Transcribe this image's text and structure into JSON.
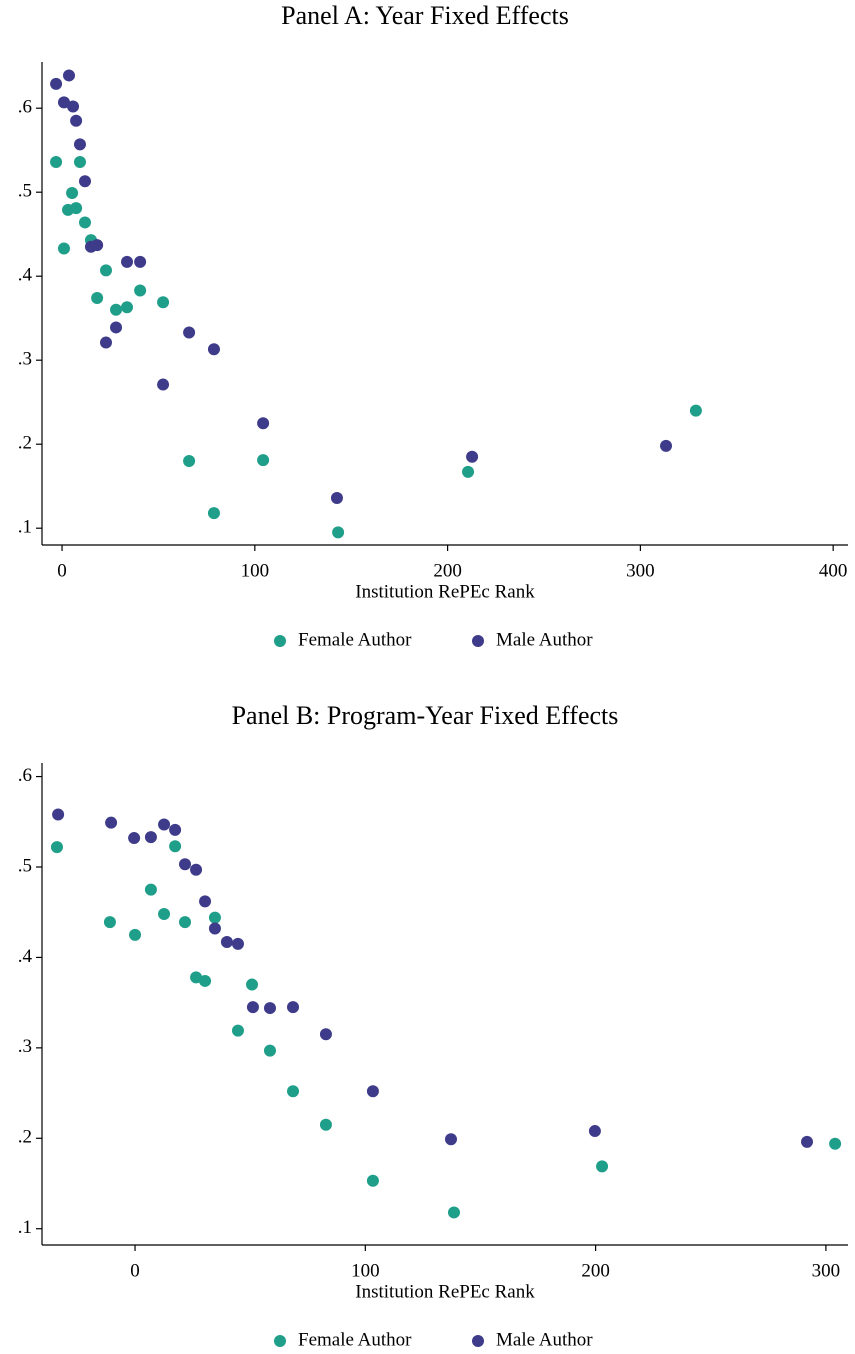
{
  "chart_data": [
    {
      "type": "scatter",
      "title": "Panel A: Year Fixed Effects",
      "xlabel": "Institution RePEc Rank",
      "xlim": [
        -10.4,
        407.7
      ],
      "ylim": [
        0.08,
        0.655
      ],
      "xticks": [
        0,
        100,
        200,
        300,
        400
      ],
      "yticks": [
        {
          "value": 0.1,
          "label": ".1"
        },
        {
          "value": 0.2,
          "label": ".2"
        },
        {
          "value": 0.3,
          "label": ".3"
        },
        {
          "value": 0.4,
          "label": ".4"
        },
        {
          "value": 0.5,
          "label": ".5"
        },
        {
          "value": 0.6,
          "label": ".6"
        }
      ],
      "series": [
        {
          "name": "Female Author",
          "color": "#1f9e89",
          "x": [
            -3.1,
            1.0,
            3.1,
            5.2,
            7.3,
            9.3,
            11.9,
            15.0,
            18.2,
            22.8,
            28.0,
            33.7,
            40.5,
            52.4,
            65.9,
            78.8,
            104.3,
            143.2,
            210.6,
            328.8
          ],
          "values": [
            0.536,
            0.433,
            0.479,
            0.499,
            0.481,
            0.536,
            0.464,
            0.443,
            0.374,
            0.407,
            0.36,
            0.363,
            0.383,
            0.369,
            0.18,
            0.118,
            0.181,
            0.095,
            0.167,
            0.24
          ]
        },
        {
          "name": "Male Author",
          "color": "#3e3b8a",
          "x": [
            -3.1,
            1.0,
            3.6,
            5.7,
            7.3,
            9.3,
            11.9,
            15.0,
            18.2,
            22.8,
            28.0,
            33.7,
            40.5,
            52.4,
            65.9,
            78.8,
            104.3,
            142.6,
            212.7,
            313.3
          ],
          "values": [
            0.629,
            0.607,
            0.639,
            0.602,
            0.585,
            0.557,
            0.513,
            0.435,
            0.437,
            0.321,
            0.339,
            0.417,
            0.417,
            0.271,
            0.333,
            0.313,
            0.225,
            0.136,
            0.185,
            0.198
          ]
        }
      ]
    },
    {
      "type": "scatter",
      "title": "Panel B: Program-Year Fixed Effects",
      "xlabel": "Institution RePEc Rank",
      "xlim": [
        -40.4,
        309.6
      ],
      "ylim": [
        0.082,
        0.615
      ],
      "xticks": [
        0,
        100,
        200,
        300
      ],
      "yticks": [
        {
          "value": 0.1,
          "label": ".1"
        },
        {
          "value": 0.2,
          "label": ".2"
        },
        {
          "value": 0.3,
          "label": ".3"
        },
        {
          "value": 0.4,
          "label": ".4"
        },
        {
          "value": 0.5,
          "label": ".5"
        },
        {
          "value": 0.6,
          "label": ".6"
        }
      ],
      "series": [
        {
          "name": "Female Author",
          "color": "#1f9e89",
          "x": [
            -33.9,
            -10.9,
            0,
            6.9,
            12.6,
            17.4,
            21.7,
            26.5,
            30.4,
            34.7,
            44.7,
            50.8,
            58.6,
            68.6,
            82.9,
            103.3,
            138.5,
            202.8,
            304.0
          ],
          "values": [
            0.522,
            0.439,
            0.425,
            0.475,
            0.448,
            0.523,
            0.439,
            0.378,
            0.374,
            0.444,
            0.319,
            0.37,
            0.297,
            0.252,
            0.215,
            0.153,
            0.118,
            0.169,
            0.194
          ]
        },
        {
          "name": "Male Author",
          "color": "#3e3b8a",
          "x": [
            -33.4,
            -10.4,
            -0.4,
            6.9,
            12.6,
            17.4,
            21.7,
            26.5,
            30.4,
            34.7,
            39.9,
            44.7,
            51.2,
            58.6,
            68.6,
            82.9,
            103.3,
            137.2,
            199.7,
            291.8
          ],
          "values": [
            0.558,
            0.549,
            0.532,
            0.533,
            0.547,
            0.541,
            0.503,
            0.497,
            0.462,
            0.432,
            0.417,
            0.415,
            0.345,
            0.344,
            0.345,
            0.315,
            0.252,
            0.199,
            0.208,
            0.196
          ]
        }
      ]
    }
  ]
}
